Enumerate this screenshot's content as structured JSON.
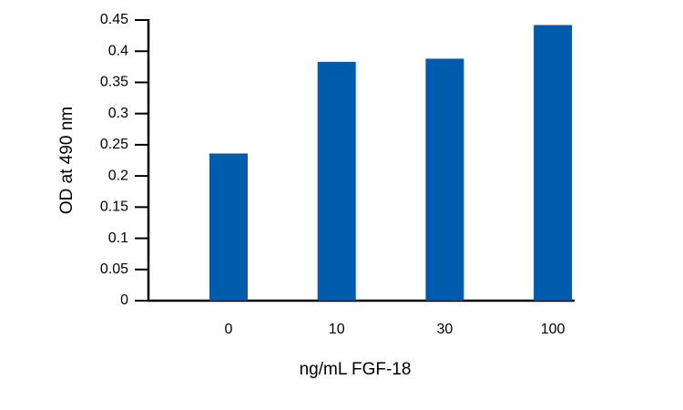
{
  "chart_data": {
    "type": "bar",
    "x_label": "ng/mL FGF-18",
    "y_label": "OD at 490 nm",
    "categories": [
      "0",
      "10",
      "30",
      "100"
    ],
    "values": [
      0.236,
      0.383,
      0.388,
      0.442
    ],
    "color": "#005bac",
    "ylim": [
      0,
      0.45
    ],
    "yticks": [
      0,
      0.05,
      0.1,
      0.15,
      0.2,
      0.25,
      0.3,
      0.35,
      0.4,
      0.45
    ]
  }
}
